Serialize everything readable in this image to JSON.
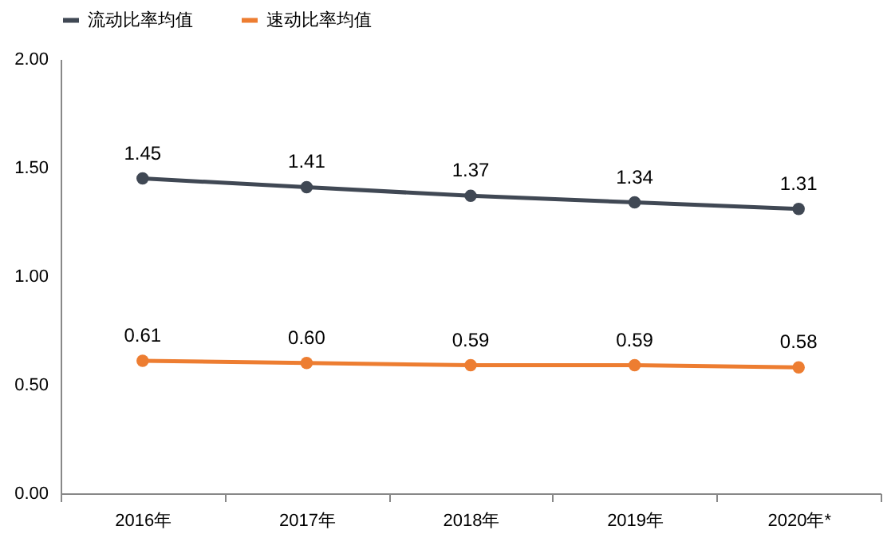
{
  "chart_data": {
    "type": "line",
    "categories": [
      "2016年",
      "2017年",
      "2018年",
      "2019年",
      "2020年*"
    ],
    "series": [
      {
        "name": "流动比率均值",
        "color": "#404854",
        "values": [
          1.45,
          1.41,
          1.37,
          1.34,
          1.31
        ],
        "value_labels": [
          "1.45",
          "1.41",
          "1.37",
          "1.34",
          "1.31"
        ]
      },
      {
        "name": "速动比率均值",
        "color": "#ed7d31",
        "values": [
          0.61,
          0.6,
          0.59,
          0.59,
          0.58
        ],
        "value_labels": [
          "0.61",
          "0.60",
          "0.59",
          "0.59",
          "0.58"
        ]
      }
    ],
    "ylim": [
      0,
      2
    ],
    "yticks": [
      {
        "value": 0,
        "label": "0.00"
      },
      {
        "value": 0.5,
        "label": "0.50"
      },
      {
        "value": 1,
        "label": "1.00"
      },
      {
        "value": 1.5,
        "label": "1.50"
      },
      {
        "value": 2,
        "label": "2.00"
      }
    ],
    "legend": "top",
    "marker": "circle",
    "line_style": "solid",
    "grid": false
  }
}
